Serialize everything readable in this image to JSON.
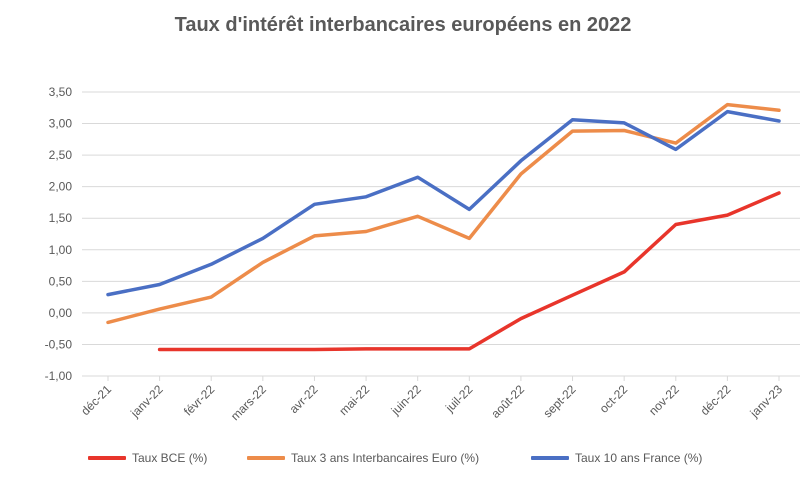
{
  "chart_data": {
    "type": "line",
    "title": "Taux d'intérêt interbancaires européens en 2022",
    "xlabel": "",
    "ylabel": "",
    "ylim": [
      -1.0,
      3.5
    ],
    "yticks": [
      "-1,00",
      "-0,50",
      "0,00",
      "0,50",
      "1,00",
      "1,50",
      "2,00",
      "2,50",
      "3,00",
      "3,50"
    ],
    "categories": [
      "déc-21",
      "janv-22",
      "févr-22",
      "mars-22",
      "avr-22",
      "mai-22",
      "juin-22",
      "juil-22",
      "août-22",
      "sept-22",
      "oct-22",
      "nov-22",
      "déc-22",
      "janv-23"
    ],
    "grid": "horizontal",
    "legend_position": "bottom",
    "series": [
      {
        "name": "Taux BCE (%)",
        "color": "#e8352b",
        "values": [
          null,
          -0.58,
          -0.58,
          -0.58,
          -0.58,
          -0.57,
          -0.57,
          -0.57,
          -0.09,
          0.28,
          0.65,
          1.4,
          1.55,
          1.9
        ]
      },
      {
        "name": "Taux 3 ans Interbancaires  Euro (%)",
        "color": "#ed8c4a",
        "values": [
          -0.15,
          0.06,
          0.25,
          0.8,
          1.22,
          1.29,
          1.53,
          1.18,
          2.2,
          2.88,
          2.89,
          2.69,
          3.3,
          3.21
        ]
      },
      {
        "name": "Taux 10 ans France (%)",
        "color": "#4a6fc4",
        "values": [
          0.29,
          0.45,
          0.77,
          1.18,
          1.72,
          1.84,
          2.15,
          1.64,
          2.41,
          3.06,
          3.01,
          2.59,
          3.19,
          3.04
        ]
      }
    ]
  }
}
